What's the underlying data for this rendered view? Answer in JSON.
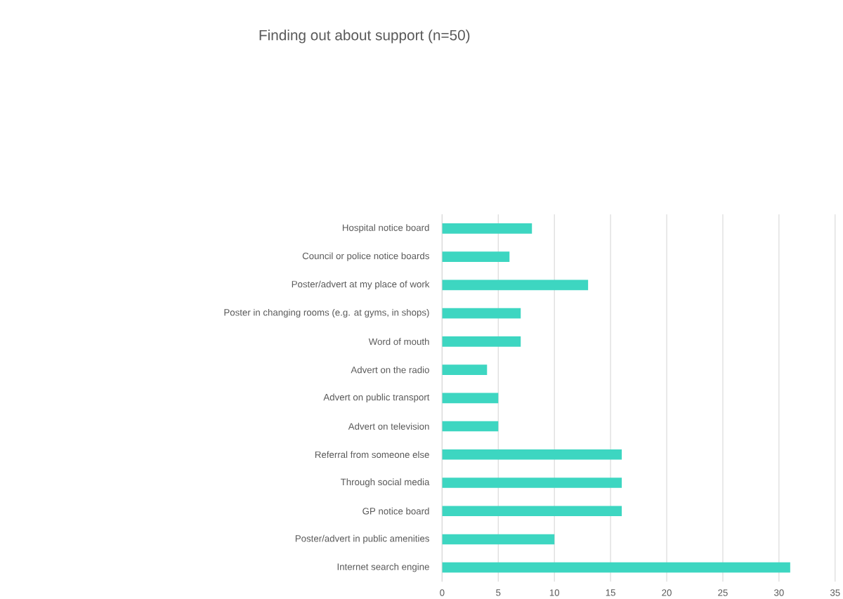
{
  "chart_data": {
    "type": "bar",
    "orientation": "horizontal",
    "title": "Finding out about support (n=50)",
    "categories": [
      "Hospital notice board",
      "Council or police notice boards",
      "Poster/advert at my place of work",
      "Poster in changing rooms (e.g. at gyms, in shops)",
      "Word of mouth",
      "Advert on the radio",
      "Advert on public transport",
      "Advert on television",
      "Referral from someone else",
      "Through social media",
      "GP notice board",
      "Poster/advert in public amenities",
      "Internet search engine"
    ],
    "values": [
      8,
      6,
      13,
      7,
      7,
      4,
      5,
      5,
      16,
      16,
      16,
      10,
      31
    ],
    "color": "#3dd6c1",
    "xlim": [
      0,
      35
    ],
    "xticks": [
      0,
      5,
      10,
      15,
      20,
      25,
      30,
      35
    ],
    "grid": "x"
  }
}
